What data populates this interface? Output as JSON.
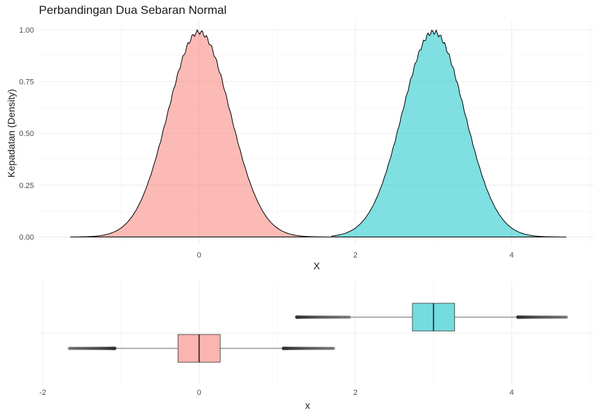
{
  "chart_data": [
    {
      "type": "area",
      "title": "Perbandingan Dua Sebaran Normal",
      "xlabel": "X",
      "ylabel": "Kepadatan (Density)",
      "xlim": [
        -2.05,
        5.05
      ],
      "ylim": [
        -0.035,
        1.04
      ],
      "x_ticks": [
        0,
        2,
        4
      ],
      "y_ticks": [
        0.0,
        0.25,
        0.5,
        0.75,
        1.0
      ],
      "y_tick_labels": [
        "0.00",
        "0.25",
        "0.50",
        "0.75",
        "1.00"
      ],
      "grid": true,
      "series": [
        {
          "x_range": [
            -1.65,
            1.7
          ],
          "mean": 0.0,
          "sd": 0.4,
          "peak": 0.99,
          "fill": "#F8766D"
        },
        {
          "x_range": [
            1.7,
            4.7
          ],
          "mean": 3.0,
          "sd": 0.4,
          "peak": 0.99,
          "fill": "#00BFC4"
        }
      ]
    },
    {
      "type": "boxplot",
      "xlabel": "x",
      "xlim": [
        -2.05,
        5.05
      ],
      "x_ticks": [
        -2,
        0,
        2,
        4
      ],
      "grid": true,
      "series": [
        {
          "q1": -0.27,
          "median": 0.0,
          "q3": 0.27,
          "whisker_low": -1.08,
          "whisker_high": 1.08,
          "outlier_low": [
            -1.08,
            -1.66
          ],
          "outlier_high": [
            1.08,
            1.72
          ],
          "fill": "#F8766D"
        },
        {
          "q1": 2.73,
          "median": 3.0,
          "q3": 3.27,
          "whisker_low": 1.92,
          "whisker_high": 4.08,
          "outlier_low": [
            1.25,
            1.92
          ],
          "outlier_high": [
            4.08,
            4.7
          ],
          "fill": "#00BFC4"
        }
      ]
    }
  ]
}
